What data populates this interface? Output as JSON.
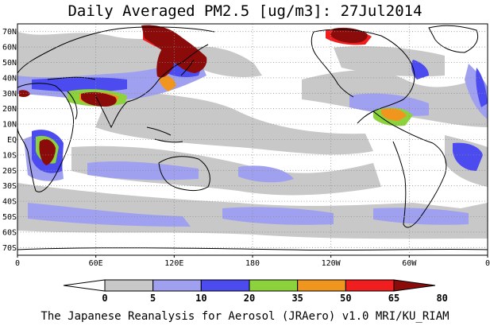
{
  "title": "Daily Averaged PM2.5 [ug/m3]: 27Jul2014",
  "footer": "The Japanese Reanalysis for Aerosol (JRAero) v1.0 MRI/KU_RIAM",
  "map": {
    "projection": "equirectangular",
    "lon_range": [
      0,
      360
    ],
    "lat_range": [
      -75,
      75
    ],
    "lat_labels": [
      "70N",
      "60N",
      "50N",
      "40N",
      "30N",
      "20N",
      "10N",
      "EQ",
      "10S",
      "20S",
      "30S",
      "40S",
      "50S",
      "60S",
      "70S"
    ],
    "lat_values": [
      70,
      60,
      50,
      40,
      30,
      20,
      10,
      0,
      -10,
      -20,
      -30,
      -40,
      -50,
      -60,
      -70
    ],
    "lon_labels": [
      "0",
      "60E",
      "120E",
      "180",
      "120W",
      "60W",
      "0"
    ],
    "lon_values": [
      0,
      60,
      120,
      180,
      240,
      300,
      360
    ],
    "grid": "dotted"
  },
  "colorbar": {
    "labels": [
      "0",
      "5",
      "10",
      "20",
      "35",
      "50",
      "65",
      "80"
    ],
    "colors": [
      "#ffffff",
      "#c8c8c8",
      "#a0a0f0",
      "#4b4bf0",
      "#8cd23c",
      "#f0961e",
      "#f01e1e",
      "#8b0a0a"
    ]
  }
}
